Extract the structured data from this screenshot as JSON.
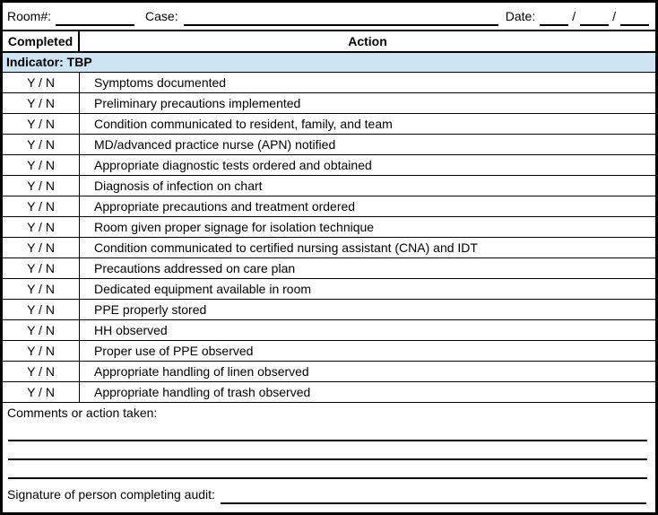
{
  "form": {
    "header_fields": {
      "room_label": "Room#:",
      "case_label": "Case:",
      "date_label": "Date:",
      "date_separator": "/"
    },
    "table": {
      "col_completed": "Completed",
      "col_action": "Action",
      "indicator_label": "Indicator: TBP",
      "yn_label": "Y / N",
      "rows": [
        "Symptoms documented",
        "Preliminary precautions implemented",
        "Condition communicated to resident, family, and team",
        "MD/advanced practice nurse (APN) notified",
        "Appropriate diagnostic tests ordered and obtained",
        "Diagnosis of infection on chart",
        "Appropriate precautions and treatment ordered",
        "Room given proper signage for isolation technique",
        "Condition communicated to certified nursing assistant (CNA) and IDT",
        "Precautions addressed on care plan",
        "Dedicated equipment available in room",
        "PPE properly stored",
        "HH observed",
        "Proper use of PPE observed",
        "Appropriate handling of linen observed",
        "Appropriate handling of trash observed"
      ]
    },
    "footer": {
      "comments_label": "Comments or action taken:",
      "signature_label": "Signature of person completing audit:"
    },
    "colors": {
      "indicator_bg": "#cde5f2",
      "border": "#000000"
    }
  }
}
